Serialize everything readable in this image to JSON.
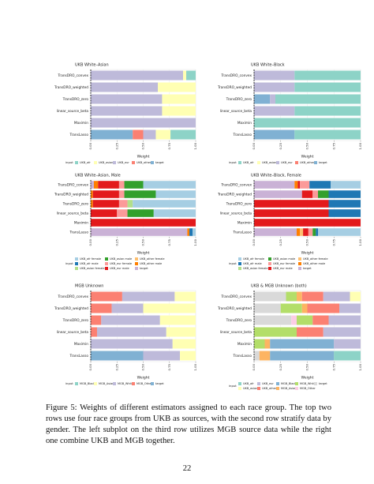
{
  "chart_data": [
    {
      "type": "bar",
      "orientation": "horizontal",
      "stacked": true,
      "title": "UKB White–Asian",
      "categories": [
        "TransDRO_convex",
        "TransDRO_weighted",
        "TransDRO_zero",
        "linear_source_beta",
        "Maximin",
        "TransLasso"
      ],
      "series": [
        {
          "name": "UKB_afr",
          "color": "#8dd3c7",
          "values": [
            0.09,
            0,
            0,
            0,
            0,
            0.24
          ]
        },
        {
          "name": "UKB_asian",
          "color": "#ffffb3",
          "values": [
            0.03,
            0.36,
            0.32,
            0.32,
            0,
            0.14
          ]
        },
        {
          "name": "UKB_eur",
          "color": "#bebada",
          "values": [
            0.88,
            0.64,
            0.68,
            0.68,
            1,
            0.12
          ]
        },
        {
          "name": "UKB_other",
          "color": "#fb8072",
          "values": [
            0,
            0,
            0,
            0,
            0,
            0.1
          ]
        },
        {
          "name": "target",
          "color": "#80b1d3",
          "values": [
            0,
            0,
            0,
            0,
            0,
            0.4
          ]
        }
      ],
      "xlim": [
        0,
        1
      ],
      "xticks": [
        {
          "value": 0,
          "label": "0.00"
        },
        {
          "value": 0.25,
          "label": "0.25"
        },
        {
          "value": 0.5,
          "label": "0.50"
        },
        {
          "value": 0.75,
          "label": "0.75"
        },
        {
          "value": 1,
          "label": "1.00"
        }
      ],
      "xlabel": "Weight",
      "legend_title": "input",
      "legend_position": "bottom",
      "grid": true
    },
    {
      "type": "bar",
      "orientation": "horizontal",
      "stacked": true,
      "title": "UKB White–Black",
      "categories": [
        "TransDRO_convex",
        "TransDRO_weighted",
        "TransDRO_zero",
        "linear_source_beta",
        "Maximin",
        "TransLasso"
      ],
      "series": [
        {
          "name": "UKB_afr",
          "color": "#8dd3c7",
          "values": [
            0.62,
            0.62,
            0.8,
            0.62,
            1,
            0.62
          ]
        },
        {
          "name": "UKB_asian",
          "color": "#ffffb3",
          "values": [
            0,
            0,
            0,
            0,
            0,
            0
          ]
        },
        {
          "name": "UKB_eur",
          "color": "#bebada",
          "values": [
            0.38,
            0.38,
            0.05,
            0.38,
            0,
            0
          ]
        },
        {
          "name": "UKB_other",
          "color": "#fb8072",
          "values": [
            0,
            0,
            0,
            0,
            0,
            0
          ]
        },
        {
          "name": "target",
          "color": "#80b1d3",
          "values": [
            0,
            0,
            0.15,
            0,
            0,
            0.38
          ]
        }
      ],
      "xlim": [
        0,
        1
      ],
      "xticks": [
        {
          "value": 0,
          "label": "0.00"
        },
        {
          "value": 0.25,
          "label": "0.25"
        },
        {
          "value": 0.5,
          "label": "0.50"
        },
        {
          "value": 0.75,
          "label": "0.75"
        },
        {
          "value": 1,
          "label": "1.00"
        }
      ],
      "xlabel": "Weight",
      "legend_title": "input",
      "legend_position": "bottom",
      "grid": true
    },
    {
      "type": "bar",
      "orientation": "horizontal",
      "stacked": true,
      "title": "UKB White–Asian, Male",
      "categories": [
        "TransDRO_convex",
        "TransDRO_weighted",
        "TransDRO_zero",
        "linear_source_beta",
        "Maximin",
        "TransLasso"
      ],
      "series": [
        {
          "name": "UKB_afr female",
          "color": "#a6cee3",
          "values": [
            0.5,
            0.38,
            0.6,
            0.4,
            0,
            0.03
          ]
        },
        {
          "name": "UKB_afr male",
          "color": "#1f78b4",
          "values": [
            0,
            0,
            0,
            0,
            0,
            0.03
          ]
        },
        {
          "name": "UKB_asian female",
          "color": "#b2df8a",
          "values": [
            0,
            0,
            0.05,
            0,
            0,
            0
          ]
        },
        {
          "name": "UKB_asian male",
          "color": "#33a02c",
          "values": [
            0.18,
            0.3,
            0,
            0.25,
            0,
            0
          ]
        },
        {
          "name": "UKB_eur female",
          "color": "#fb9a99",
          "values": [
            0.05,
            0.05,
            0.08,
            0.1,
            0,
            0
          ]
        },
        {
          "name": "UKB_eur male",
          "color": "#e31a1c",
          "values": [
            0.2,
            0.25,
            0.25,
            0.25,
            1,
            0
          ]
        },
        {
          "name": "UKB_other female",
          "color": "#fdbf6f",
          "values": [
            0,
            0,
            0,
            0,
            0,
            0
          ]
        },
        {
          "name": "UKB_other male",
          "color": "#ff7f00",
          "values": [
            0.04,
            0.02,
            0.02,
            0,
            0,
            0.02
          ]
        },
        {
          "name": "target",
          "color": "#cab2d6",
          "values": [
            0.03,
            0,
            0,
            0,
            0,
            0.92
          ]
        }
      ],
      "xlim": [
        0,
        1
      ],
      "xticks": [
        {
          "value": 0,
          "label": "0.00"
        },
        {
          "value": 0.25,
          "label": "0.25"
        },
        {
          "value": 0.5,
          "label": "0.50"
        },
        {
          "value": 0.75,
          "label": "0.75"
        },
        {
          "value": 1,
          "label": "1.00"
        }
      ],
      "xlabel": "Weight",
      "legend_title": "input",
      "legend_position": "bottom",
      "grid": true
    },
    {
      "type": "bar",
      "orientation": "horizontal",
      "stacked": true,
      "title": "UKB White–Black, Female",
      "categories": [
        "TransDRO_convex",
        "TransDRO_weighted",
        "TransDRO_zero",
        "linear_source_beta",
        "Maximin",
        "TransLasso"
      ],
      "series": [
        {
          "name": "UKB_afr female",
          "color": "#a6cee3",
          "values": [
            0.28,
            0,
            0,
            0,
            0,
            0.4
          ]
        },
        {
          "name": "UKB_afr male",
          "color": "#1f78b4",
          "values": [
            0.2,
            0.3,
            0.3,
            0.3,
            0,
            0.02
          ]
        },
        {
          "name": "UKB_asian female",
          "color": "#b2df8a",
          "values": [
            0,
            0,
            0,
            0,
            0,
            0
          ]
        },
        {
          "name": "UKB_asian male",
          "color": "#33a02c",
          "values": [
            0,
            0.1,
            0,
            0,
            0,
            0.03
          ]
        },
        {
          "name": "UKB_eur female",
          "color": "#fb9a99",
          "values": [
            0.09,
            0.05,
            0,
            0,
            0,
            0.04
          ]
        },
        {
          "name": "UKB_eur male",
          "color": "#e31a1c",
          "values": [
            0.02,
            0.1,
            0.7,
            0.7,
            1,
            0.05
          ]
        },
        {
          "name": "UKB_other female",
          "color": "#fdbf6f",
          "values": [
            0,
            0,
            0,
            0,
            0,
            0.03
          ]
        },
        {
          "name": "UKB_other male",
          "color": "#ff7f00",
          "values": [
            0.03,
            0,
            0,
            0,
            0,
            0.03
          ]
        },
        {
          "name": "target",
          "color": "#cab2d6",
          "values": [
            0.38,
            0.45,
            0,
            0,
            0,
            0.4
          ]
        }
      ],
      "xlim": [
        0,
        1
      ],
      "xticks": [
        {
          "value": 0,
          "label": "0.00"
        },
        {
          "value": 0.25,
          "label": "0.25"
        },
        {
          "value": 0.5,
          "label": "0.50"
        },
        {
          "value": 0.75,
          "label": "0.75"
        },
        {
          "value": 1,
          "label": "1.00"
        }
      ],
      "xlabel": "Weight",
      "legend_title": "input",
      "legend_position": "bottom",
      "grid": true
    },
    {
      "type": "bar",
      "orientation": "horizontal",
      "stacked": true,
      "title": "MGB Unknown",
      "categories": [
        "TransDRO_convex",
        "TransDRO_weighted",
        "TransDRO_zero",
        "linear_source_beta",
        "Maximin",
        "TransLasso"
      ],
      "series": [
        {
          "name": "MGB_Black",
          "color": "#8dd3c7",
          "values": [
            0,
            0,
            0,
            0,
            0,
            0
          ]
        },
        {
          "name": "MGB_Asian",
          "color": "#ffffb3",
          "values": [
            0.2,
            0.5,
            0.34,
            0.28,
            0.22,
            0.15
          ]
        },
        {
          "name": "MGB_White",
          "color": "#bebada",
          "values": [
            0.5,
            0.3,
            0.56,
            0.66,
            0.78,
            0.35
          ]
        },
        {
          "name": "MGB_Other",
          "color": "#fb8072",
          "values": [
            0.3,
            0.2,
            0.1,
            0.06,
            0,
            0
          ]
        },
        {
          "name": "target",
          "color": "#80b1d3",
          "values": [
            0,
            0,
            0,
            0,
            0,
            0.5
          ]
        }
      ],
      "xlim": [
        0,
        1
      ],
      "xticks": [
        {
          "value": 0,
          "label": "0.00"
        },
        {
          "value": 0.25,
          "label": "0.25"
        },
        {
          "value": 0.5,
          "label": "0.50"
        },
        {
          "value": 0.75,
          "label": "0.75"
        },
        {
          "value": 1,
          "label": "1.00"
        }
      ],
      "xlabel": "Weight",
      "legend_title": "input",
      "legend_position": "bottom",
      "grid": true
    },
    {
      "type": "bar",
      "orientation": "horizontal",
      "stacked": true,
      "title": "UKB & MGB Unknown (both)",
      "categories": [
        "TransDRO_convex",
        "TransDRO_weighted",
        "TransDRO_zero",
        "linear_source_beta",
        "Maximin",
        "TransLasso"
      ],
      "series": [
        {
          "name": "UKB_afr",
          "color": "#8dd3c7",
          "values": [
            0,
            0,
            0,
            0,
            0,
            0.25
          ]
        },
        {
          "name": "UKB_asian",
          "color": "#ffffb3",
          "values": [
            0.1,
            0,
            0,
            0,
            0,
            0
          ]
        },
        {
          "name": "UKB_eur",
          "color": "#bebada",
          "values": [
            0.25,
            0.2,
            0.3,
            0.35,
            0.25,
            0
          ]
        },
        {
          "name": "UKB_other",
          "color": "#fb8072",
          "values": [
            0.2,
            0.3,
            0.15,
            0.25,
            0,
            0
          ]
        },
        {
          "name": "MGB_Black",
          "color": "#80b1d3",
          "values": [
            0,
            0,
            0,
            0,
            0.6,
            0.6
          ]
        },
        {
          "name": "MGB_Asian",
          "color": "#fdb462",
          "values": [
            0.05,
            0.05,
            0,
            0,
            0.05,
            0.1
          ]
        },
        {
          "name": "MGB_White",
          "color": "#b3de69",
          "values": [
            0.1,
            0.2,
            0.15,
            0.4,
            0.1,
            0
          ]
        },
        {
          "name": "MGB_Other",
          "color": "#fccde5",
          "values": [
            0,
            0,
            0.05,
            0,
            0,
            0
          ]
        },
        {
          "name": "target",
          "color": "#d9d9d9",
          "values": [
            0.3,
            0.25,
            0.35,
            0,
            0,
            0.05
          ]
        }
      ],
      "xlim": [
        0,
        1
      ],
      "xticks": [
        {
          "value": 0,
          "label": "0.00"
        },
        {
          "value": 0.25,
          "label": "0.25"
        },
        {
          "value": 0.5,
          "label": "0.50"
        },
        {
          "value": 0.75,
          "label": "0.75"
        },
        {
          "value": 1,
          "label": "1.00"
        }
      ],
      "xlabel": "Weight",
      "legend_title": "input",
      "legend_position": "bottom",
      "grid": true
    }
  ],
  "caption": "Figure 5: Weights of different estimators assigned to each race group. The top two rows use four race groups from UKB as sources, with the second row stratify data by gender. The left subplot on the third row utilizes MGB source data while the right one combine UKB and MGB together.",
  "page_number": "22"
}
